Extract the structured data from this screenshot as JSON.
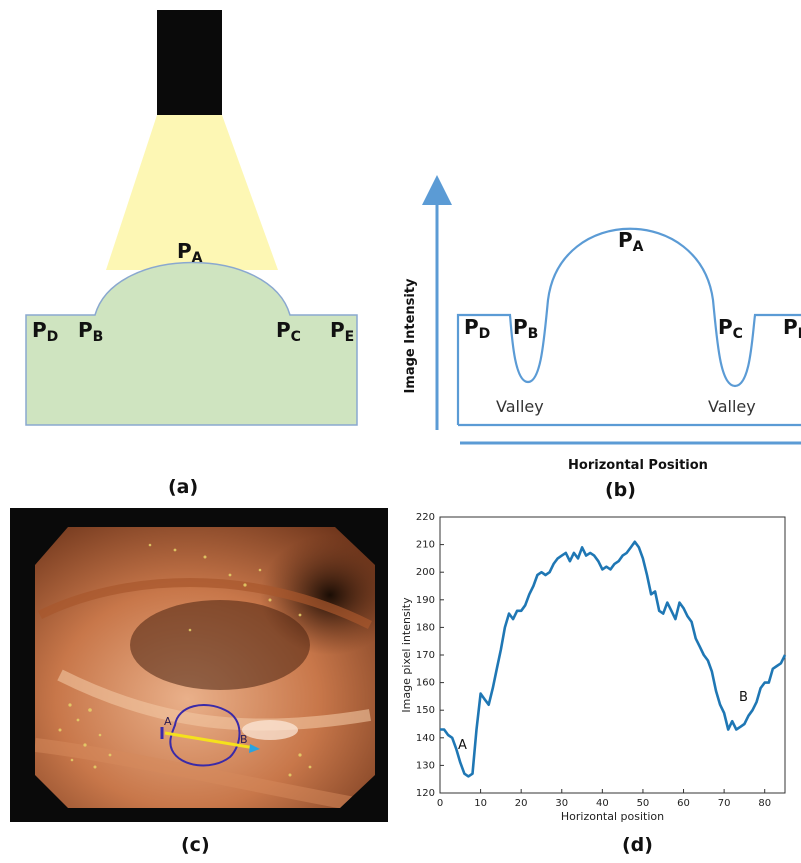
{
  "panel_a": {
    "caption": "(a)",
    "points": [
      {
        "id": "A",
        "letter": "P",
        "sub": "A"
      },
      {
        "id": "B",
        "letter": "P",
        "sub": "B"
      },
      {
        "id": "C",
        "letter": "P",
        "sub": "C"
      },
      {
        "id": "D",
        "letter": "P",
        "sub": "D"
      },
      {
        "id": "E",
        "letter": "P",
        "sub": "E"
      }
    ],
    "colors": {
      "camera": "#0a0a0a",
      "light": "#fdf7b4",
      "tissue": "#cfe4c0",
      "outline": "#8aa8cf"
    }
  },
  "panel_b": {
    "caption": "(b)",
    "ylabel": "Image Intensity",
    "xlabel": "Horizontal Position",
    "points": [
      {
        "id": "A",
        "letter": "P",
        "sub": "A"
      },
      {
        "id": "B",
        "letter": "P",
        "sub": "B"
      },
      {
        "id": "C",
        "letter": "P",
        "sub": "C"
      },
      {
        "id": "D",
        "letter": "P",
        "sub": "D"
      },
      {
        "id": "E",
        "letter": "P",
        "sub": "E"
      }
    ],
    "valley_left": "Valley",
    "valley_right": "Valley",
    "colors": {
      "curve": "#5b9bd5",
      "axis": "#5b9bd5"
    }
  },
  "panel_c": {
    "caption": "(c)",
    "marker_a": "A",
    "marker_b": "B",
    "colors": {
      "line": "#f5e11c",
      "outline": "#3a2aa8",
      "arrow": "#29a3e0"
    }
  },
  "panel_d": {
    "caption": "(d)",
    "label_a": "A",
    "label_b": "B"
  },
  "chart_data": {
    "type": "line",
    "title": "",
    "xlabel": "Horizontal position",
    "ylabel": "Image pixel intensity",
    "xlim": [
      0,
      85
    ],
    "ylim": [
      120,
      220
    ],
    "xticks": [
      0,
      10,
      20,
      30,
      40,
      50,
      60,
      70,
      80
    ],
    "yticks": [
      120,
      130,
      140,
      150,
      160,
      170,
      180,
      190,
      200,
      210,
      220
    ],
    "grid": false,
    "series": [
      {
        "color": "#1f77b4",
        "x": [
          0,
          1,
          2,
          3,
          4,
          5,
          6,
          7,
          8,
          9,
          10,
          11,
          12,
          13,
          14,
          15,
          16,
          17,
          18,
          19,
          20,
          21,
          22,
          23,
          24,
          25,
          26,
          27,
          28,
          29,
          30,
          31,
          32,
          33,
          34,
          35,
          36,
          37,
          38,
          39,
          40,
          41,
          42,
          43,
          44,
          45,
          46,
          47,
          48,
          49,
          50,
          51,
          52,
          53,
          54,
          55,
          56,
          57,
          58,
          59,
          60,
          61,
          62,
          63,
          64,
          65,
          66,
          67,
          68,
          69,
          70,
          71,
          72,
          73,
          74,
          75,
          76,
          77,
          78,
          79,
          80,
          81,
          82,
          83,
          84,
          85
        ],
        "y": [
          143,
          143,
          141,
          140,
          136,
          131,
          127,
          126,
          127,
          143,
          156,
          154,
          152,
          158,
          165,
          172,
          180,
          185,
          183,
          186,
          186,
          188,
          192,
          195,
          199,
          200,
          199,
          200,
          203,
          205,
          206,
          207,
          204,
          207,
          205,
          209,
          206,
          207,
          206,
          204,
          201,
          202,
          201,
          203,
          204,
          206,
          207,
          209,
          211,
          209,
          205,
          199,
          192,
          193,
          186,
          185,
          189,
          186,
          183,
          189,
          187,
          184,
          182,
          176,
          173,
          170,
          168,
          164,
          157,
          152,
          149,
          143,
          146,
          143,
          144,
          145,
          148,
          150,
          153,
          158,
          160,
          160,
          165,
          166,
          167,
          170
        ]
      }
    ],
    "annotations": [
      "A",
      "B"
    ]
  }
}
